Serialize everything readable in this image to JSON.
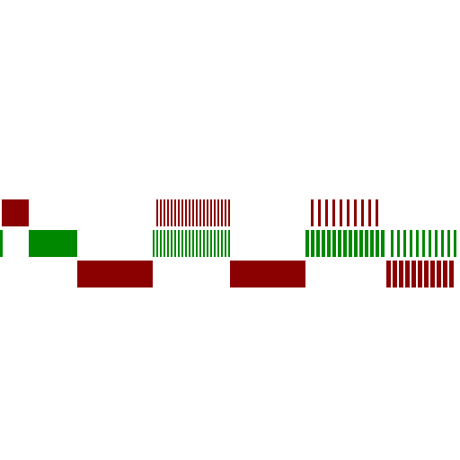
{
  "colors": {
    "background": "#ffffff",
    "red": "#8b0000",
    "green": "#008800"
  },
  "rows": [
    {
      "name": "row-1",
      "color_key": "red",
      "segments": [
        {
          "kind": "solid",
          "x0": 2,
          "x1": 32
        },
        {
          "kind": "striped",
          "x0": 174,
          "x1": 256,
          "period": 4,
          "duty": 2
        },
        {
          "kind": "striped",
          "x0": 346,
          "x1": 422,
          "period": 8,
          "duty": 3
        }
      ]
    },
    {
      "name": "row-2",
      "color_key": "green",
      "segments": [
        {
          "kind": "solid",
          "x0": 0,
          "x1": 3
        },
        {
          "kind": "solid",
          "x0": 32,
          "x1": 86
        },
        {
          "kind": "striped",
          "x0": 170,
          "x1": 256,
          "period": 4,
          "duty": 2
        },
        {
          "kind": "striped",
          "x0": 340,
          "x1": 430,
          "period": 6,
          "duty": 4
        },
        {
          "kind": "striped",
          "x0": 435,
          "x1": 512,
          "period": 7,
          "duty": 3
        }
      ]
    },
    {
      "name": "row-3",
      "color_key": "red",
      "segments": [
        {
          "kind": "solid",
          "x0": 86,
          "x1": 170
        },
        {
          "kind": "solid",
          "x0": 256,
          "x1": 340
        },
        {
          "kind": "striped",
          "x0": 430,
          "x1": 507,
          "period": 7,
          "duty": 5
        }
      ]
    }
  ]
}
